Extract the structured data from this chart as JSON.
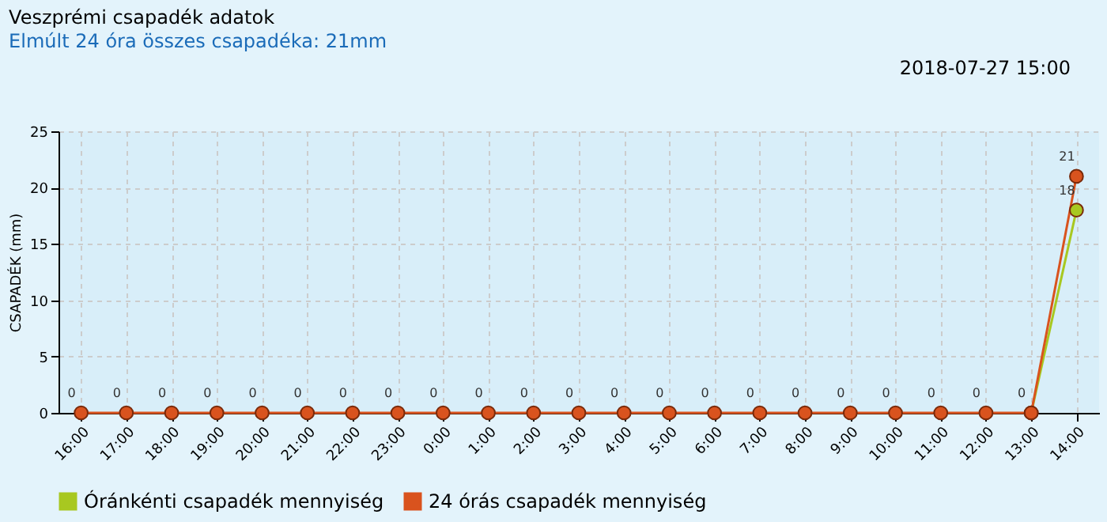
{
  "chart_data": {
    "type": "line",
    "title": "Veszprémi csapadék adatok",
    "subtitle": "Elmúlt 24 óra összes csapadéka: 21mm",
    "annotations": [
      "2018-07-27 15:00"
    ],
    "ylabel": "CSAPADÉK (mm)",
    "categories": [
      "16:00",
      "17:00",
      "18:00",
      "19:00",
      "20:00",
      "21:00",
      "22:00",
      "23:00",
      "0:00",
      "1:00",
      "2:00",
      "3:00",
      "4:00",
      "5:00",
      "6:00",
      "7:00",
      "8:00",
      "9:00",
      "10:00",
      "11:00",
      "12:00",
      "13:00",
      "14:00"
    ],
    "series": [
      {
        "name": "Óránkénti csapadék mennyiség",
        "color": "#a8c820",
        "values": [
          null,
          null,
          null,
          null,
          null,
          null,
          null,
          null,
          null,
          null,
          null,
          null,
          null,
          null,
          null,
          null,
          null,
          null,
          null,
          null,
          null,
          0,
          18
        ],
        "value_labels": [
          null,
          null,
          null,
          null,
          null,
          null,
          null,
          null,
          null,
          null,
          null,
          null,
          null,
          null,
          null,
          null,
          null,
          null,
          null,
          null,
          null,
          null,
          "18"
        ]
      },
      {
        "name": "24 órás csapadék mennyiség",
        "color": "#d9531e",
        "values": [
          0,
          0,
          0,
          0,
          0,
          0,
          0,
          0,
          0,
          0,
          0,
          0,
          0,
          0,
          0,
          0,
          0,
          0,
          0,
          0,
          0,
          0,
          21
        ],
        "value_labels": [
          "0",
          "0",
          "0",
          "0",
          "0",
          "0",
          "0",
          "0",
          "0",
          "0",
          "0",
          "0",
          "0",
          "0",
          "0",
          "0",
          "0",
          "0",
          "0",
          "0",
          "0",
          "0",
          "21"
        ]
      }
    ],
    "ylim": [
      0,
      25
    ],
    "yticks": [
      0,
      5,
      10,
      15,
      20,
      25
    ],
    "grid": true,
    "legend": "bottom",
    "marker": "circle",
    "line_style": "solid"
  }
}
